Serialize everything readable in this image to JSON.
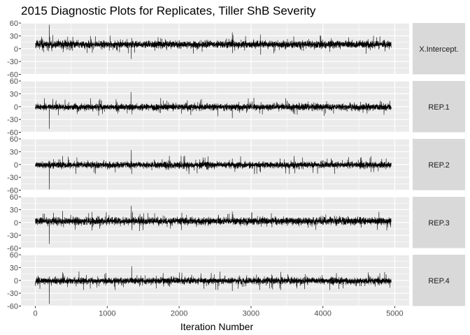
{
  "chart_data": {
    "type": "line",
    "title": "2015 Diagnostic Plots for Replicates, Tiller ShB Severity",
    "xlabel": "Iteration Number",
    "ylabel": "",
    "xlim": [
      -200,
      5200
    ],
    "ylim": [
      -60,
      60
    ],
    "x_ticks": [
      0,
      1000,
      2000,
      3000,
      4000,
      5000
    ],
    "y_ticks": [
      -60,
      -30,
      0,
      30,
      60
    ],
    "grid": true,
    "n_iterations": 4950,
    "facets": [
      {
        "name": "X.Intercept.",
        "mean": 10,
        "sd": 4,
        "spikes": [
          [
            195,
            56
          ],
          [
            1335,
            -24
          ],
          [
            1340,
            25
          ],
          [
            2740,
            38
          ],
          [
            3130,
            33
          ],
          [
            3135,
            -14
          ],
          [
            450,
            28
          ],
          [
            4520,
            20
          ]
        ]
      },
      {
        "name": "REP.1",
        "mean": -1,
        "sd": 3.5,
        "spikes": [
          [
            195,
            -52
          ],
          [
            1330,
            34
          ],
          [
            1345,
            -18
          ],
          [
            2740,
            -27
          ],
          [
            1780,
            14
          ],
          [
            3120,
            -16
          ],
          [
            4800,
            14
          ]
        ]
      },
      {
        "name": "REP.2",
        "mean": -1,
        "sd": 3.5,
        "spikes": [
          [
            195,
            -58
          ],
          [
            1335,
            34
          ],
          [
            1340,
            -22
          ],
          [
            380,
            20
          ],
          [
            3125,
            -16
          ],
          [
            2740,
            14
          ],
          [
            4880,
            14
          ]
        ]
      },
      {
        "name": "REP.3",
        "mean": 3,
        "sd": 4,
        "spikes": [
          [
            195,
            -50
          ],
          [
            1335,
            39
          ],
          [
            1450,
            -20
          ],
          [
            2740,
            25
          ],
          [
            380,
            27
          ],
          [
            4780,
            25
          ]
        ]
      },
      {
        "name": "REP.4",
        "mean": -1,
        "sd": 3.5,
        "spikes": [
          [
            195,
            -55
          ],
          [
            1340,
            33
          ],
          [
            380,
            19
          ],
          [
            2740,
            -25
          ],
          [
            3120,
            -22
          ],
          [
            4880,
            14
          ]
        ]
      }
    ]
  }
}
